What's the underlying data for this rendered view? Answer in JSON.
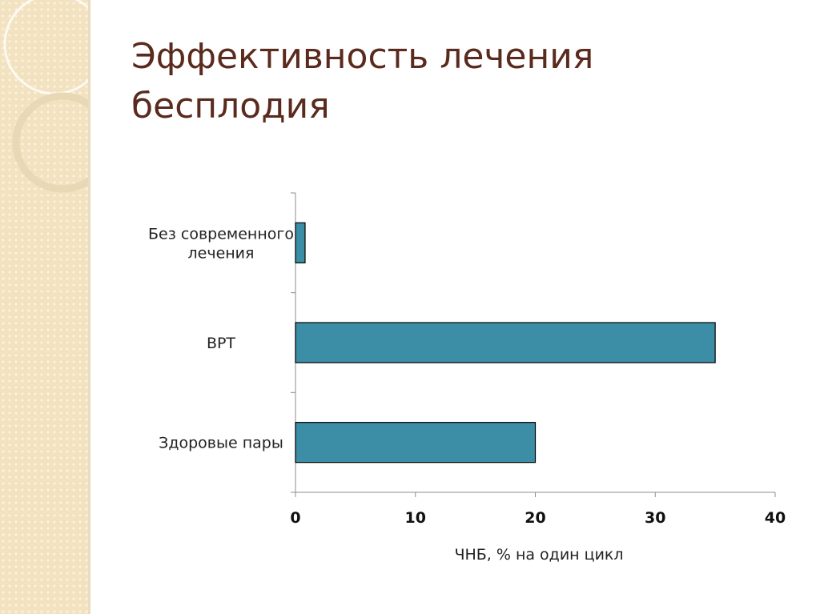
{
  "slide": {
    "title_line1": "Эффективность лечения",
    "title_line2": "бесплодия"
  },
  "colors": {
    "bar_fill": "#3b8ea5",
    "title": "#5a2a1d",
    "side_band": "#f2e2bf"
  },
  "chart_data": {
    "type": "bar",
    "orientation": "horizontal",
    "categories": [
      [
        "Без современного",
        "лечения"
      ],
      [
        "ВРТ"
      ],
      [
        "Здоровые пары"
      ]
    ],
    "values": [
      0.8,
      35,
      20
    ],
    "xlabel": "ЧНБ, % на один цикл",
    "ylabel": "",
    "xlim": [
      0,
      40
    ],
    "ticks": [
      0,
      10,
      20,
      30,
      40
    ],
    "grid": false,
    "legend": "none"
  }
}
